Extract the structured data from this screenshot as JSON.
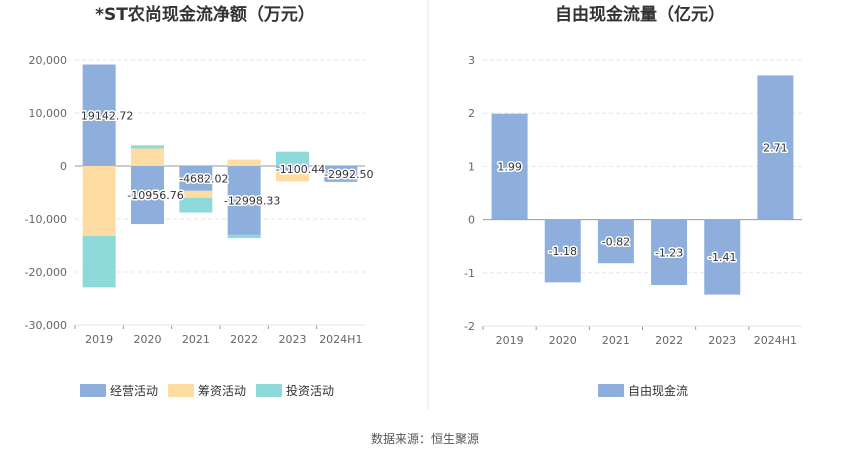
{
  "colors": {
    "operating": "#8eaedb",
    "financing": "#ffdca1",
    "investing": "#8ed9da",
    "free_cash_flow": "#8eaedb",
    "grid": "#e6e6e6",
    "axis": "#999999",
    "divider": "#e8e8e8"
  },
  "source_text": "数据来源：恒生聚源",
  "chart_data": [
    {
      "type": "bar",
      "stacked": true,
      "title": "*ST农尚现金流净额（万元）",
      "categories": [
        "2019",
        "2020",
        "2021",
        "2022",
        "2023",
        "2024H1"
      ],
      "ylim": [
        -30000,
        20000
      ],
      "yticks": [
        20000,
        10000,
        0,
        -10000,
        -20000,
        -30000
      ],
      "ytick_labels": [
        "20,000",
        "10,000",
        "0",
        "-10,000",
        "-20,000",
        "-30,000"
      ],
      "grid": true,
      "legend_position": "bottom",
      "series": [
        {
          "name": "经营活动",
          "color_key": "operating",
          "values": [
            19142.72,
            -10956.76,
            -4682.02,
            -12998.33,
            -1100.44,
            -2992.5
          ]
        },
        {
          "name": "筹资活动",
          "color_key": "financing",
          "values": [
            -13200,
            3300,
            -1300,
            1200,
            -1800,
            0
          ]
        },
        {
          "name": "投资活动",
          "color_key": "investing",
          "values": [
            -9700,
            600,
            -2800,
            -600,
            2700,
            0
          ]
        }
      ],
      "data_labels": [
        "19142.72",
        "-10956.76",
        "-4682.02",
        "-12998.33",
        "-1100.44",
        "-2992.50"
      ]
    },
    {
      "type": "bar",
      "title": "自由现金流量（亿元）",
      "categories": [
        "2019",
        "2020",
        "2021",
        "2022",
        "2023",
        "2024H1"
      ],
      "ylim": [
        -2,
        3
      ],
      "yticks": [
        3,
        2,
        1,
        0,
        -1,
        -2
      ],
      "ytick_labels": [
        "3",
        "2",
        "1",
        "0",
        "-1",
        "-2"
      ],
      "grid": true,
      "legend_position": "bottom",
      "series": [
        {
          "name": "自由现金流",
          "color_key": "free_cash_flow",
          "values": [
            1.99,
            -1.18,
            -0.82,
            -1.23,
            -1.41,
            2.71
          ]
        }
      ],
      "data_labels": [
        "1.99",
        "-1.18",
        "-0.82",
        "-1.23",
        "-1.41",
        "2.71"
      ]
    }
  ]
}
